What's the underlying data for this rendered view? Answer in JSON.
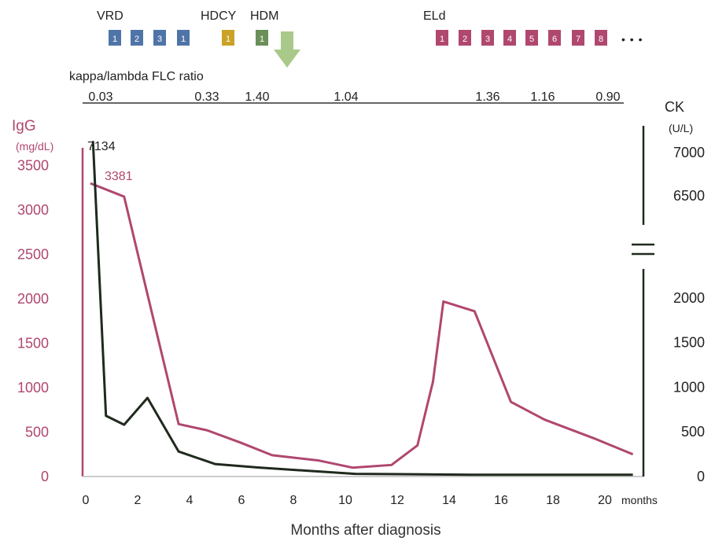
{
  "colors": {
    "igg": "#b0476f",
    "ck": "#1f2a1d",
    "axis_igg": "#b0476f",
    "axis_ck": "#1f2a1d",
    "vrd": "#4f74a8",
    "hdcy": "#c9a227",
    "hdm": "#6a8f57",
    "eld": "#b0476f",
    "arrow": "#a9c98a"
  },
  "treatments": {
    "vrd": {
      "label": "VRD",
      "boxes": [
        "1",
        "2",
        "3",
        "1"
      ]
    },
    "hdcy": {
      "label": "HDCY",
      "boxes": [
        "1"
      ]
    },
    "hdm": {
      "label": "HDM",
      "boxes": [
        "1"
      ]
    },
    "eld": {
      "label": "ELd",
      "boxes": [
        "1",
        "2",
        "3",
        "4",
        "5",
        "6",
        "7",
        "8"
      ],
      "continuation": "• • •"
    }
  },
  "flc": {
    "label": "kappa/lambda  FLC ratio",
    "values": [
      "0.03",
      "0.33",
      "1.40",
      "1.04",
      "1.36",
      "1.16",
      "0.90"
    ]
  },
  "chart_data": {
    "type": "line",
    "xlabel": "Months after diagnosis",
    "x_unit_label": "months",
    "xlim": [
      0,
      21
    ],
    "x_ticks": [
      0,
      2,
      4,
      6,
      8,
      10,
      12,
      14,
      16,
      18,
      20
    ],
    "y_left": {
      "label": "IgG",
      "unit": "(mg/dL)",
      "ylim": [
        0,
        3700
      ],
      "ticks": [
        0,
        500,
        1000,
        1500,
        2000,
        2500,
        3000,
        3500
      ]
    },
    "y_right": {
      "label": "CK",
      "unit": "(U/L)",
      "broken": true,
      "ticks": [
        0,
        500,
        1000,
        1500,
        2000,
        6500,
        7000
      ]
    },
    "series": [
      {
        "name": "IgG",
        "axis": "left",
        "x": [
          0.3,
          1.6,
          2.5,
          3.7,
          4.8,
          6.1,
          7.3,
          9.1,
          10.4,
          11.9,
          12.9,
          13.5,
          13.9,
          15.1,
          16.5,
          17.8,
          19.7,
          21.2
        ],
        "y": [
          3300,
          3150,
          2050,
          590,
          520,
          380,
          240,
          180,
          100,
          130,
          350,
          1070,
          1970,
          1860,
          840,
          640,
          430,
          250
        ]
      },
      {
        "name": "CK",
        "axis": "right",
        "x": [
          0.4,
          0.9,
          1.6,
          2.5,
          3.7,
          5.1,
          6.8,
          10.5,
          15.0,
          21.2
        ],
        "y": [
          7134,
          680,
          580,
          880,
          280,
          140,
          100,
          30,
          20,
          20
        ]
      }
    ],
    "annotations": [
      {
        "text": "7134",
        "series": "CK"
      },
      {
        "text": "3381",
        "series": "IgG"
      }
    ]
  }
}
